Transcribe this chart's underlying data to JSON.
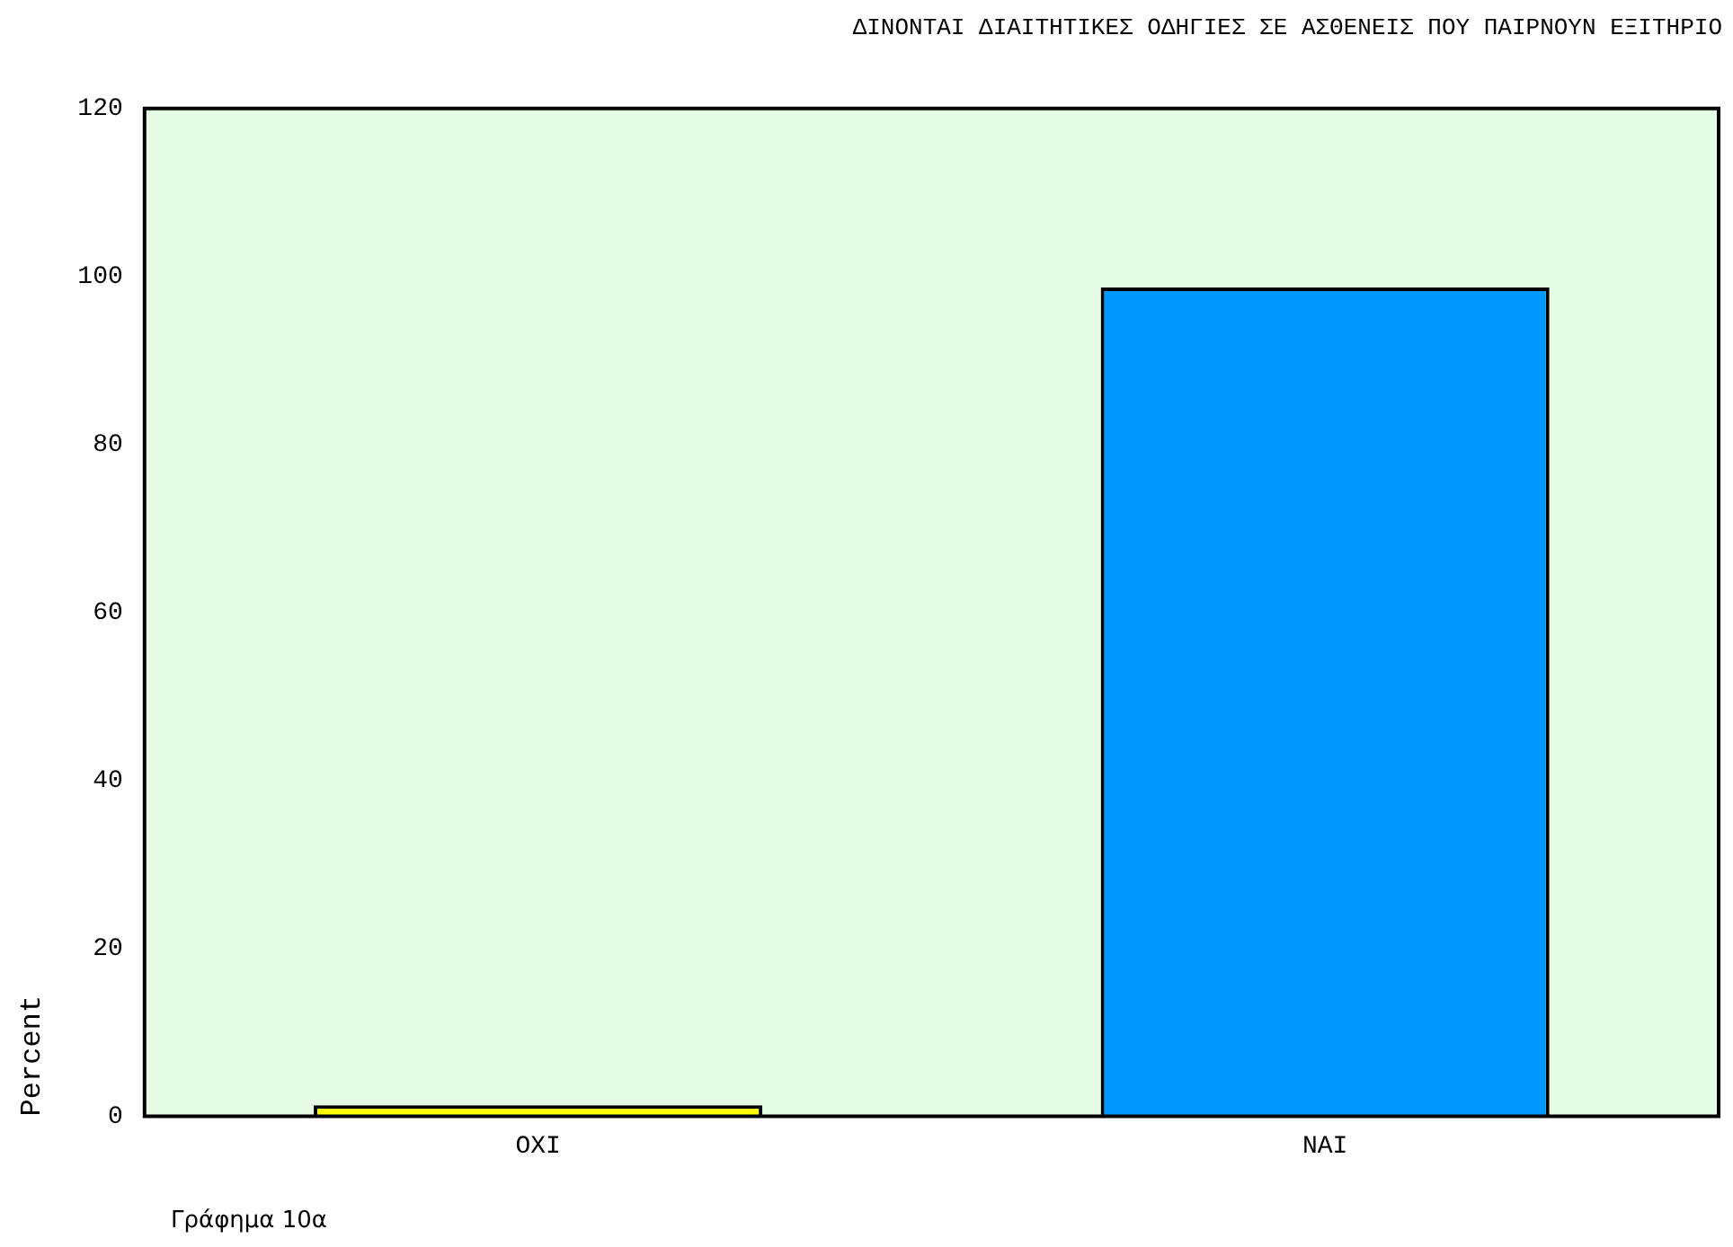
{
  "chart_data": {
    "type": "bar",
    "title": "ΔΙΝΟΝΤΑΙ ΔΙΑΙΤΗΤΙΚΕΣ ΟΔΗΓΙΕΣ ΣΕ ΑΣΘΕΝΕΙΣ ΠΟΥ ΠΑΙΡΝΟΥΝ ΕΞΙΤΗΡΙΟ",
    "ylabel": "Percent",
    "categories": [
      "ΟΧΙ",
      "ΝΑΙ"
    ],
    "values": [
      1.3,
      98.7
    ],
    "colors": [
      "#ffff00",
      "#0099ff"
    ],
    "ylim": [
      0,
      120
    ],
    "yticks": [
      0,
      20,
      40,
      60,
      80,
      100,
      120
    ],
    "grid": false,
    "legend": false,
    "annotations": [
      "Γράφημα 10α"
    ]
  }
}
